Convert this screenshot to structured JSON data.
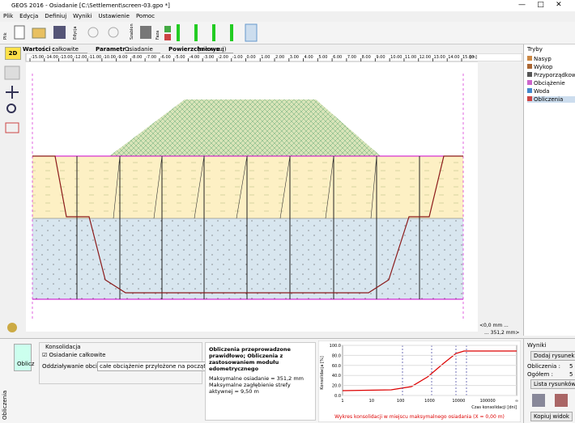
{
  "window": {
    "title": "GEOS 2016 - Osiadanie [C:\\Settlement\\screen-03.gpo *]"
  },
  "menu": [
    "Plik",
    "Edycja",
    "Definiuj",
    "Wyniki",
    "Ustawienie",
    "Pomoc"
  ],
  "toolbar": {
    "labels": [
      "Plik",
      "Edycja",
      "Szablon",
      "Faza"
    ]
  },
  "options": [
    {
      "label": "Wartości :",
      "value": "całkowite"
    },
    {
      "label": "Parametr :",
      "value": "Osiadanie"
    },
    {
      "label": "Powierzchniowe :",
      "value": "(nie rysuj)"
    }
  ],
  "ruler": {
    "ticks": [
      "-15.00",
      "-14.00",
      "-13.00",
      "-12.00",
      "-11.00",
      "-10.00",
      "-9.00",
      "-8.00",
      "-7.00",
      "-6.00",
      "-5.00",
      "-4.00",
      "-3.00",
      "-2.00",
      "-1.00",
      "0.00",
      "1.00",
      "2.00",
      "3.00",
      "4.00",
      "5.00",
      "6.00",
      "7.00",
      "8.00",
      "9.00",
      "10.00",
      "11.00",
      "12.00",
      "13.00",
      "14.00",
      "15.00"
    ],
    "unit": "[m]"
  },
  "view": {
    "mode": "2D",
    "scale_min": "<0,0 mm ...",
    "scale_max": "... 351,2 mm>"
  },
  "modes": {
    "title": "Tryby",
    "items": [
      "Nasyp",
      "Wykop",
      "Przyporządkow.",
      "Obciążenie",
      "Woda",
      "Obliczenia"
    ]
  },
  "calc": {
    "tab": "Obliczenia",
    "button": "Oblicz",
    "group": "Konsolidacja",
    "checkbox": "Osiadanie całkowite",
    "load_label": "Oddziaływanie obciążenia :",
    "load_value": "całe obciążenie przyłożone na początku fazy",
    "result_title": "Obliczenia przeprowadzone prawidłowo; Obliczenia z zastosowaniem modułu edometrycznego",
    "result_lines": [
      "Maksymalne osiadanie = 351,2 mm",
      "Maksymalne zagłębienie strefy aktywnej = 9,50 m"
    ]
  },
  "chart": {
    "ylabel": "Konsolidacja [%]",
    "xlabel": "Czas konsolidacji [dni]",
    "yticks": [
      "100.0",
      "80.0",
      "60.0",
      "40.0",
      "20.0",
      "0.0"
    ],
    "xticks": [
      "1",
      "10",
      "100",
      "1000",
      "10000",
      "100000",
      "∞"
    ],
    "caption": "Wykres konsolidacji w miejscu maksymalnego osiadania (X = 0,00 m)"
  },
  "results": {
    "title": "Wyniki",
    "add": "Dodaj rysunek",
    "calc_label": "Obliczenia :",
    "calc_count": "5",
    "total_label": "Ogółem :",
    "total_count": "5",
    "list": "Lista rysunków",
    "copy": "Kopiuj widok"
  }
}
